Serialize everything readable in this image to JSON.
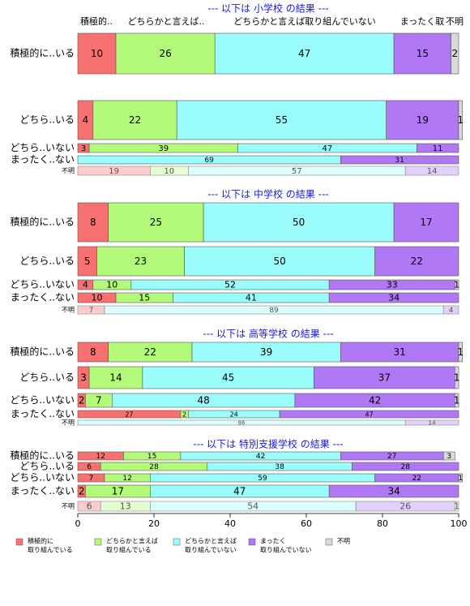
{
  "colors": {
    "cat1": "#f87171",
    "cat2": "#b3fa7a",
    "cat3": "#9afcfb",
    "cat4": "#b078f5",
    "cat5": "#d9d9d9",
    "title": "#1a1ad8",
    "faded_alpha": 0.35
  },
  "top_headers": [
    "積極的..",
    "どちらかと言えば..",
    "どちらかと言えば取り組んでいない",
    "まったく取",
    "不明"
  ],
  "legend": {
    "items": [
      {
        "l1": "積極的に",
        "l2": "取り組んでいる"
      },
      {
        "l1": "どちらかと言えば",
        "l2": "取り組んでいる"
      },
      {
        "l1": "どちらかと言えば",
        "l2": "取り組んでいない"
      },
      {
        "l1": "まったく",
        "l2": "取り組んでいない"
      },
      {
        "l1": "不明",
        "l2": ""
      }
    ]
  },
  "chart_data": {
    "type": "bar",
    "orientation": "horizontal-stacked-100",
    "xlim": [
      0,
      100
    ],
    "xticks": [
      0,
      20,
      40,
      60,
      80,
      100
    ],
    "categories": [
      "積極的に取り組んでいる",
      "どちらかと言えば取り組んでいる",
      "どちらかと言えば取り組んでいない",
      "まったく取り組んでいない",
      "不明"
    ],
    "panels": [
      {
        "title": "--- 以下は 小学校 の結果 ---",
        "rows": [
          {
            "label": "積極的に..いる",
            "values": [
              10,
              26,
              47,
              15,
              2
            ]
          },
          {
            "label": "どちら..いる",
            "values": [
              4,
              22,
              55,
              19,
              1
            ]
          },
          {
            "label": "どちら..いない",
            "values": [
              3,
              39,
              47,
              11,
              0
            ]
          },
          {
            "label": "まったく..ない",
            "values": [
              0,
              0,
              69,
              31,
              0
            ]
          },
          {
            "label": "不明",
            "values": [
              19,
              10,
              57,
              14,
              0
            ],
            "faded": true
          }
        ]
      },
      {
        "title": "--- 以下は 中学校 の結果 ---",
        "rows": [
          {
            "label": "積極的に..いる",
            "values": [
              8,
              25,
              50,
              17,
              0
            ]
          },
          {
            "label": "どちら..いる",
            "values": [
              5,
              23,
              50,
              22,
              0
            ]
          },
          {
            "label": "どちら..いない",
            "values": [
              4,
              10,
              52,
              33,
              1
            ]
          },
          {
            "label": "まったく..ない",
            "values": [
              10,
              15,
              41,
              34,
              0
            ]
          },
          {
            "label": "不明",
            "values": [
              7,
              0,
              89,
              4,
              0
            ],
            "faded": true
          }
        ]
      },
      {
        "title": "--- 以下は 高等学校 の結果 ---",
        "rows": [
          {
            "label": "積極的に..いる",
            "values": [
              8,
              22,
              39,
              31,
              1
            ]
          },
          {
            "label": "どちら..いる",
            "values": [
              3,
              14,
              45,
              37,
              1
            ]
          },
          {
            "label": "どちら..いない",
            "values": [
              2,
              7,
              48,
              42,
              1
            ]
          },
          {
            "label": "まったく..ない",
            "values": [
              27,
              2,
              24,
              47,
              0
            ]
          },
          {
            "label": "不明",
            "values": [
              0,
              0,
              86,
              14,
              0
            ],
            "faded": true
          }
        ]
      },
      {
        "title": "--- 以下は 特別支援学校 の結果 ---",
        "rows": [
          {
            "label": "積極的に..いる",
            "values": [
              12,
              15,
              42,
              27,
              3
            ]
          },
          {
            "label": "どちら..いる",
            "values": [
              6,
              28,
              38,
              28,
              0
            ]
          },
          {
            "label": "どちら..いない",
            "values": [
              7,
              12,
              59,
              22,
              1
            ]
          },
          {
            "label": "まったく..ない",
            "values": [
              2,
              17,
              47,
              34,
              0
            ]
          },
          {
            "label": "不明",
            "values": [
              6,
              13,
              54,
              26,
              1
            ],
            "faded": true
          }
        ]
      }
    ]
  }
}
